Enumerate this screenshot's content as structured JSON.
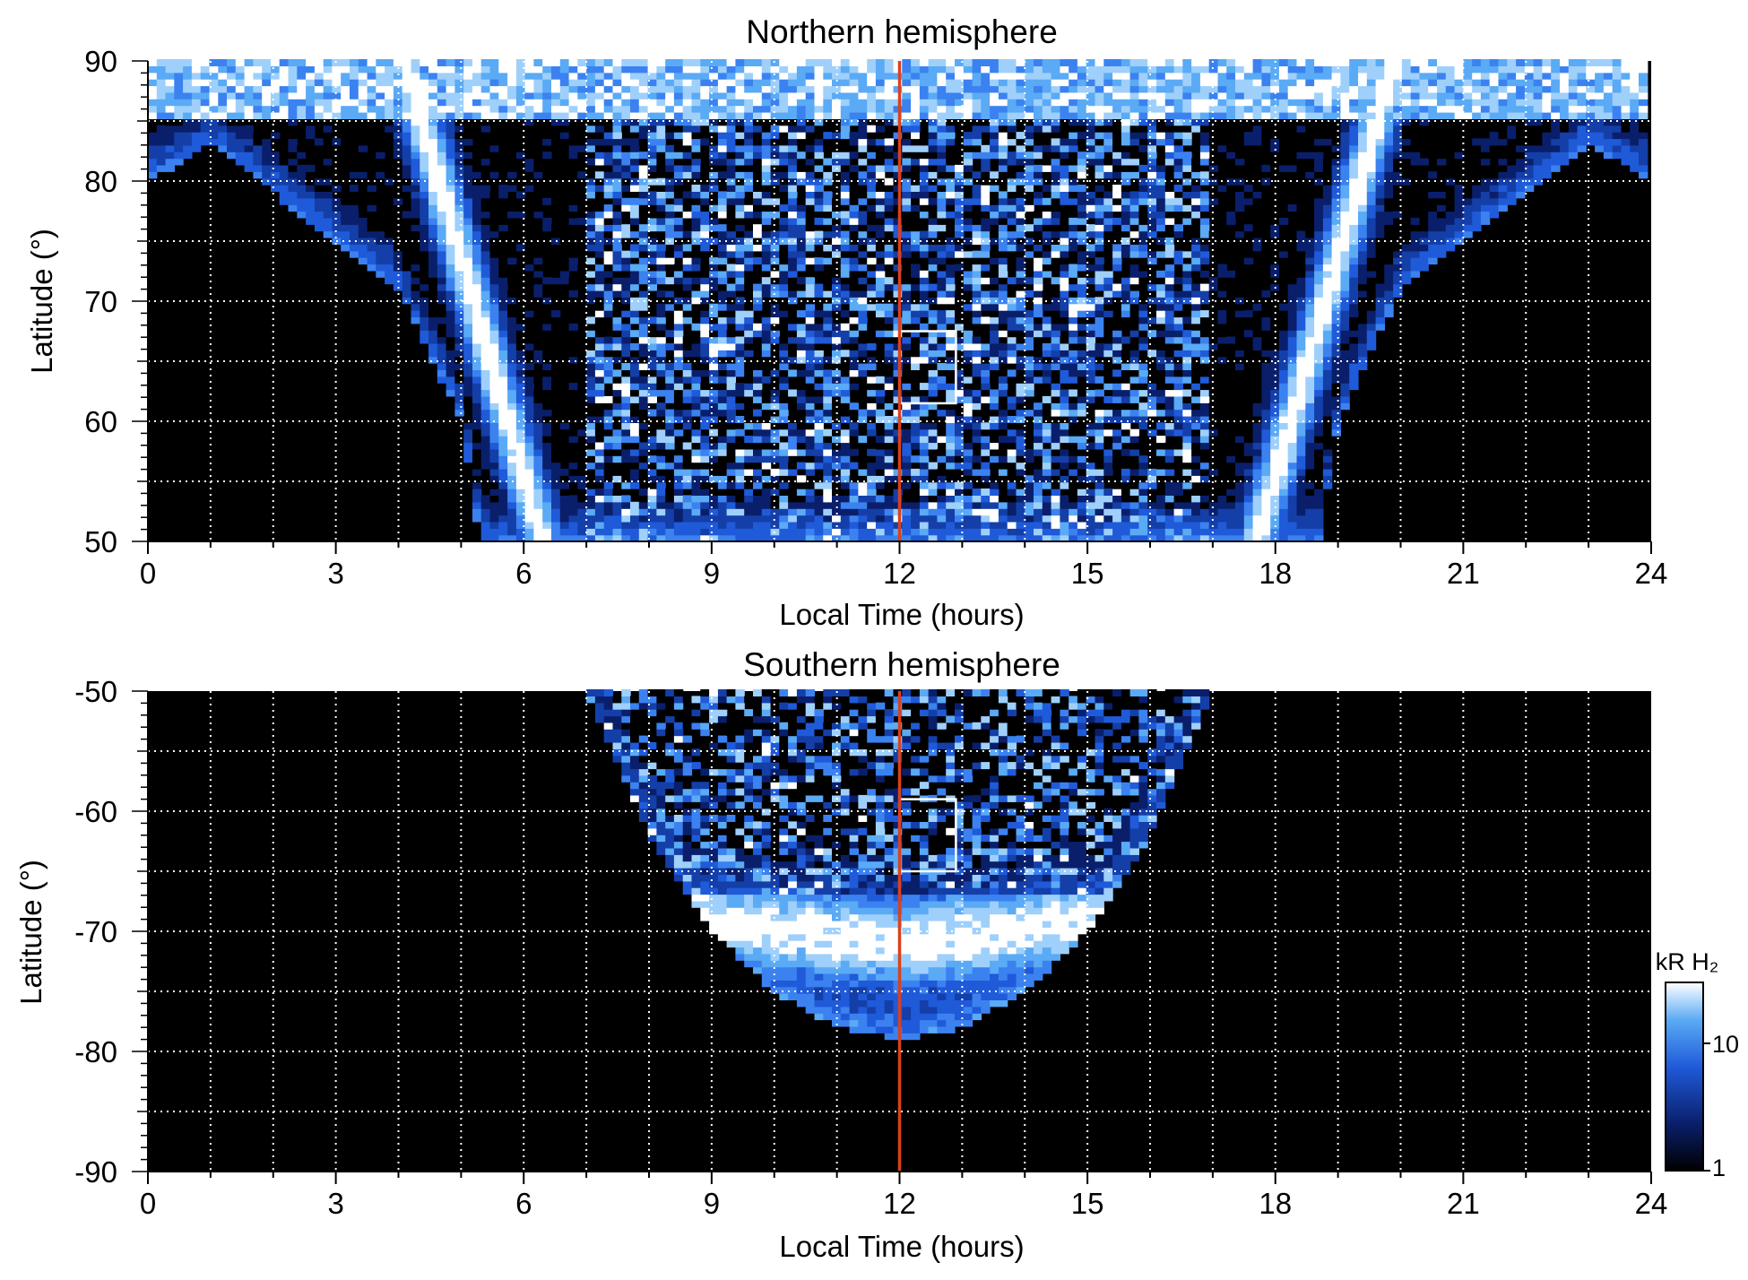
{
  "chart_data": [
    {
      "type": "heatmap",
      "title": "Northern hemisphere",
      "xlabel": "Local Time (hours)",
      "ylabel": "Latitude (°)",
      "xlim": [
        0,
        24
      ],
      "ylim": [
        50,
        90
      ],
      "x_ticks": [
        "0",
        "3",
        "6",
        "9",
        "12",
        "15",
        "18",
        "21",
        "24"
      ],
      "y_ticks": [
        "50",
        "60",
        "70",
        "80",
        "90"
      ],
      "grid": true,
      "noon_line_hours": 12,
      "highlight_box": {
        "lt": [
          12.0,
          12.9
        ],
        "lat": [
          61.5,
          67.5
        ]
      },
      "features": {
        "coverage_edge": [
          [
            0,
            80
          ],
          [
            1,
            83
          ],
          [
            2,
            79
          ],
          [
            3,
            75
          ],
          [
            4,
            71
          ],
          [
            5,
            60
          ],
          [
            5.3,
            50
          ],
          [
            18.7,
            50
          ],
          [
            19,
            60
          ],
          [
            20,
            71
          ],
          [
            21,
            75
          ],
          [
            22,
            79
          ],
          [
            23,
            83
          ],
          [
            24,
            80
          ]
        ],
        "bright_arcs_hours": [
          6.3,
          17.7
        ]
      }
    },
    {
      "type": "heatmap",
      "title": "Southern hemisphere",
      "xlabel": "Local Time (hours)",
      "ylabel": "Latitude (°)",
      "xlim": [
        0,
        24
      ],
      "ylim": [
        -90,
        -50
      ],
      "x_ticks": [
        "0",
        "3",
        "6",
        "9",
        "12",
        "15",
        "18",
        "21",
        "24"
      ],
      "y_ticks": [
        "-90",
        "-80",
        "-70",
        "-60",
        "-50"
      ],
      "grid": true,
      "noon_line_hours": 12,
      "highlight_box": {
        "lt": [
          12.0,
          12.9
        ],
        "lat": [
          -65,
          -59
        ]
      },
      "features": {
        "coverage_edge": [
          [
            7,
            -50
          ],
          [
            8,
            -62
          ],
          [
            9,
            -70
          ],
          [
            10,
            -75
          ],
          [
            11,
            -78
          ],
          [
            12,
            -79
          ],
          [
            13,
            -78
          ],
          [
            14,
            -75
          ],
          [
            15,
            -70
          ],
          [
            16,
            -62
          ],
          [
            17,
            -50
          ]
        ],
        "bright_ring_latitude": -71
      }
    }
  ],
  "colorbar": {
    "label": "kR H₂",
    "tick_labels": [
      "1",
      "10"
    ],
    "scale": "log",
    "range": [
      1,
      30
    ],
    "colors": [
      "#000000",
      "#0a1f6b",
      "#1f5ad9",
      "#5aaaf5",
      "#ffffff"
    ]
  },
  "colors": {
    "background": "#000000",
    "noon_line": "#d9411e",
    "grid": "#ffffff",
    "box": "#ffffff"
  }
}
